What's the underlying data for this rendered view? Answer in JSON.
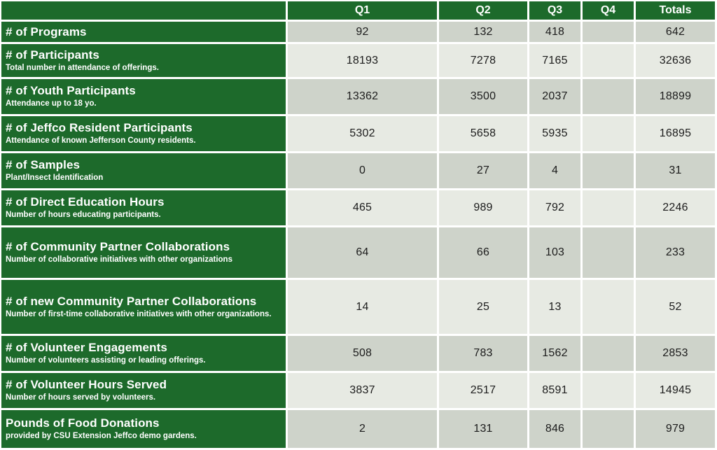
{
  "colors": {
    "header_green": "#1D6A2B",
    "row_dark": "#CED3CA",
    "row_light": "#E7EAE3",
    "value_text": "#1C1C1C",
    "grid_gap": "#FFFFFF",
    "label_text": "#FFFFFF"
  },
  "table": {
    "columns": [
      "Q1",
      "Q2",
      "Q3",
      "Q4",
      "Totals"
    ],
    "rows": [
      {
        "label": "# of Programs",
        "sublabel": "",
        "values": [
          "92",
          "132",
          "418",
          "",
          "642"
        ]
      },
      {
        "label": "# of Participants",
        "sublabel": "Total number in attendance of offerings.",
        "values": [
          "18193",
          "7278",
          "7165",
          "",
          "32636"
        ]
      },
      {
        "label": "# of Youth Participants",
        "sublabel": "Attendance up to 18 yo.",
        "values": [
          "13362",
          "3500",
          "2037",
          "",
          "18899"
        ]
      },
      {
        "label": "# of Jeffco Resident Participants",
        "sublabel": "Attendance of known Jefferson County residents.",
        "values": [
          "5302",
          "5658",
          "5935",
          "",
          "16895"
        ]
      },
      {
        "label": "# of Samples",
        "sublabel": "Plant/Insect Identification",
        "values": [
          "0",
          "27",
          "4",
          "",
          "31"
        ]
      },
      {
        "label": "# of Direct Education Hours",
        "sublabel": "Number of hours educating participants.",
        "values": [
          "465",
          "989",
          "792",
          "",
          "2246"
        ]
      },
      {
        "label": "# of Community Partner Collaborations",
        "sublabel": "Number of collaborative initiatives with other organizations",
        "values": [
          "64",
          "66",
          "103",
          "",
          "233"
        ]
      },
      {
        "label": "# of new Community Partner Collaborations",
        "sublabel": "Number of first-time collaborative initiatives with other organizations.",
        "values": [
          "14",
          "25",
          "13",
          "",
          "52"
        ]
      },
      {
        "label": "# of Volunteer Engagements",
        "sublabel": "Number of volunteers assisting or leading offerings.",
        "values": [
          "508",
          "783",
          "1562",
          "",
          "2853"
        ]
      },
      {
        "label": "# of Volunteer Hours Served",
        "sublabel": "Number of hours served by volunteers.",
        "values": [
          "3837",
          "2517",
          "8591",
          "",
          "14945"
        ]
      },
      {
        "label": "Pounds of Food Donations",
        "sublabel": "provided by CSU Extension Jeffco demo gardens.",
        "values": [
          "2",
          "131",
          "846",
          "",
          "979"
        ]
      }
    ]
  },
  "chart_data": {
    "type": "table",
    "title": "Quarterly program metrics",
    "columns": [
      "Q1",
      "Q2",
      "Q3",
      "Q4",
      "Totals"
    ],
    "rows": [
      {
        "metric": "# of Programs",
        "description": "",
        "Q1": 92,
        "Q2": 132,
        "Q3": 418,
        "Q4": null,
        "Totals": 642
      },
      {
        "metric": "# of Participants",
        "description": "Total number in attendance of offerings.",
        "Q1": 18193,
        "Q2": 7278,
        "Q3": 7165,
        "Q4": null,
        "Totals": 32636
      },
      {
        "metric": "# of Youth Participants",
        "description": "Attendance up to 18 yo.",
        "Q1": 13362,
        "Q2": 3500,
        "Q3": 2037,
        "Q4": null,
        "Totals": 18899
      },
      {
        "metric": "# of Jeffco Resident Participants",
        "description": "Attendance of known Jefferson County residents.",
        "Q1": 5302,
        "Q2": 5658,
        "Q3": 5935,
        "Q4": null,
        "Totals": 16895
      },
      {
        "metric": "# of Samples",
        "description": "Plant/Insect Identification",
        "Q1": 0,
        "Q2": 27,
        "Q3": 4,
        "Q4": null,
        "Totals": 31
      },
      {
        "metric": "# of Direct Education Hours",
        "description": "Number of hours educating participants.",
        "Q1": 465,
        "Q2": 989,
        "Q3": 792,
        "Q4": null,
        "Totals": 2246
      },
      {
        "metric": "# of Community Partner Collaborations",
        "description": "Number of collaborative initiatives with other organizations",
        "Q1": 64,
        "Q2": 66,
        "Q3": 103,
        "Q4": null,
        "Totals": 233
      },
      {
        "metric": "# of new Community Partner Collaborations",
        "description": "Number of first-time collaborative initiatives with other organizations.",
        "Q1": 14,
        "Q2": 25,
        "Q3": 13,
        "Q4": null,
        "Totals": 52
      },
      {
        "metric": "# of Volunteer Engagements",
        "description": "Number of volunteers assisting or leading offerings.",
        "Q1": 508,
        "Q2": 783,
        "Q3": 1562,
        "Q4": null,
        "Totals": 2853
      },
      {
        "metric": "# of Volunteer Hours Served",
        "description": "Number of hours served by volunteers.",
        "Q1": 3837,
        "Q2": 2517,
        "Q3": 8591,
        "Q4": null,
        "Totals": 14945
      },
      {
        "metric": "Pounds of Food Donations",
        "description": "provided by CSU Extension Jeffco demo gardens.",
        "Q1": 2,
        "Q2": 131,
        "Q3": 846,
        "Q4": null,
        "Totals": 979
      }
    ]
  }
}
